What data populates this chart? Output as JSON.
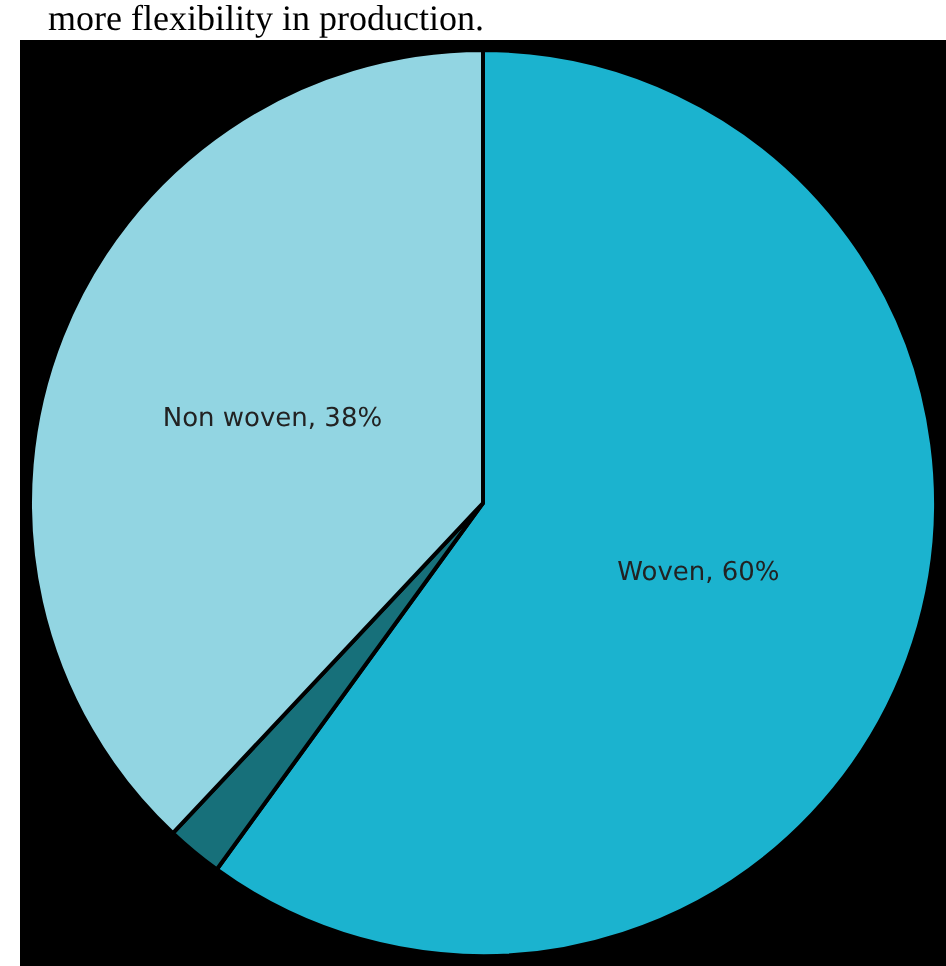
{
  "chart_data": {
    "type": "pie",
    "categories": [
      "Woven",
      null,
      "Non woven"
    ],
    "values": [
      60,
      2,
      38
    ],
    "colors": [
      "#1bb3cf",
      "#17707a",
      "#92d5e2"
    ],
    "value_labels": [
      "60%",
      null,
      "38%"
    ],
    "annotations": [
      "more flexibility in production."
    ]
  }
}
